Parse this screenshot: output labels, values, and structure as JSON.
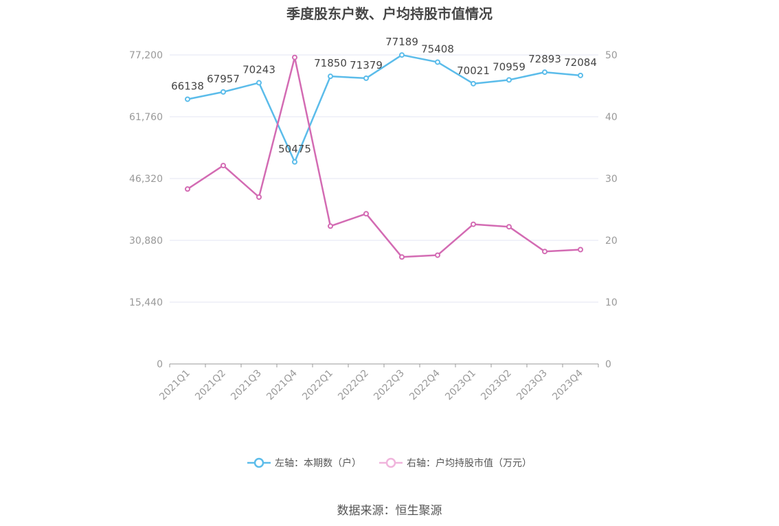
{
  "chart_data": {
    "type": "line",
    "title": "季度股东户数、户均持股市值情况",
    "categories": [
      "2021Q1",
      "2021Q2",
      "2021Q3",
      "2021Q4",
      "2022Q1",
      "2022Q2",
      "2022Q3",
      "2022Q4",
      "2023Q1",
      "2023Q2",
      "2023Q3",
      "2023Q4"
    ],
    "left_axis": {
      "ylim": [
        0,
        77200
      ],
      "ticks": [
        "0",
        "15,440",
        "30,880",
        "46,320",
        "61,760",
        "77,200"
      ]
    },
    "right_axis": {
      "ylim": [
        0,
        50
      ],
      "ticks": [
        "0",
        "10",
        "20",
        "30",
        "40",
        "50"
      ]
    },
    "series": [
      {
        "name": "左轴：本期数（户）",
        "axis": "left",
        "color": "#5bbcea",
        "values": [
          66138,
          67957,
          70243,
          50475,
          71850,
          71379,
          77189,
          75408,
          70021,
          70959,
          72893,
          72084
        ],
        "labels": [
          "66138",
          "67957",
          "70243",
          "50475",
          "71850",
          "71379",
          "77189",
          "75408",
          "70021",
          "70959",
          "72893",
          "72084"
        ]
      },
      {
        "name": "右轴：户均持股市值（万元）",
        "axis": "right",
        "color": "#d36bb3",
        "values": [
          28.3,
          32.1,
          27.0,
          49.6,
          22.3,
          24.3,
          17.3,
          17.6,
          22.6,
          22.2,
          18.2,
          18.5
        ]
      }
    ],
    "grid": true,
    "legend_position": "bottom"
  },
  "source": "数据来源：恒生聚源"
}
